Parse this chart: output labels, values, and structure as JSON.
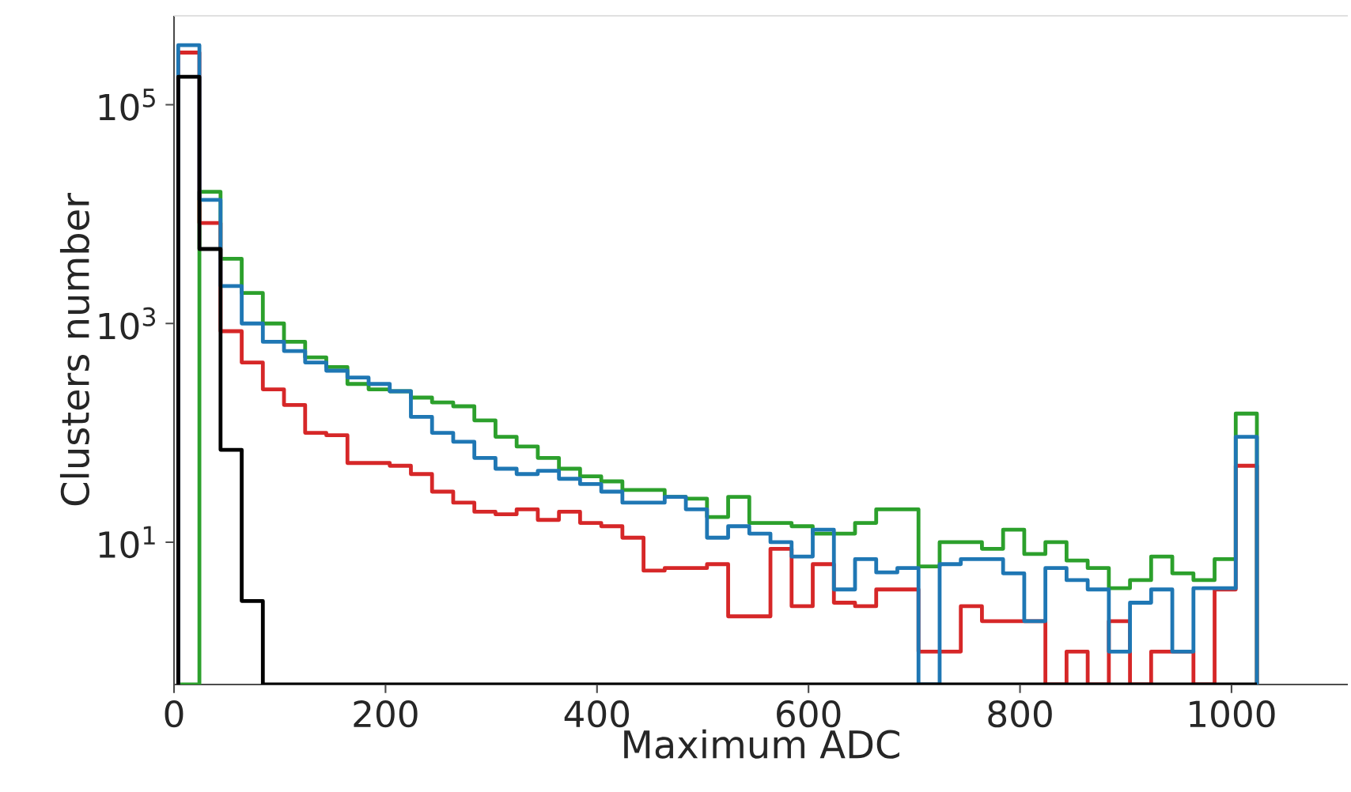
{
  "chart_data": {
    "type": "histogram",
    "xlabel": "Maximum ADC",
    "ylabel": "Clusters number",
    "log": "y",
    "xlim": [
      0,
      1110
    ],
    "ylim": [
      0.5,
      650000
    ],
    "xticks": [
      0,
      200,
      400,
      600,
      800,
      1000
    ],
    "yticks": [
      {
        "value": 10,
        "label": "10$^{1}$"
      },
      {
        "value": 1000,
        "label": "10$^{3}$"
      },
      {
        "value": 100000,
        "label": "10$^{5}$"
      }
    ],
    "bins": [
      4,
      24,
      44,
      64,
      84,
      104,
      124,
      144,
      164,
      184,
      204,
      224,
      244,
      264,
      284,
      304,
      324,
      344,
      364,
      384,
      404,
      424,
      444,
      464,
      484,
      504,
      524,
      544,
      564,
      584,
      604,
      624,
      644,
      664,
      684,
      704,
      724,
      744,
      764,
      784,
      804,
      824,
      844,
      864,
      884,
      904,
      924,
      944,
      964,
      984,
      1004,
      1024
    ],
    "series": [
      {
        "color": "#2ca02c",
        "values": [
          null,
          16000,
          3900,
          1900,
          1000,
          680,
          490,
          400,
          280,
          250,
          240,
          210,
          190,
          175,
          130,
          92,
          75,
          59,
          47,
          40,
          36,
          30,
          30,
          26,
          25,
          17,
          26,
          15,
          15,
          14,
          12,
          12,
          15,
          20,
          20,
          6,
          10,
          10,
          8.7,
          13,
          7.8,
          10,
          6.8,
          5.8,
          3.8,
          4.5,
          7.4,
          5.2,
          4.5,
          7,
          150
        ]
      },
      {
        "color": "#d62728",
        "values": [
          300000,
          8300,
          850,
          440,
          250,
          180,
          100,
          95,
          53,
          53,
          50,
          42,
          29,
          23,
          19,
          18,
          20,
          16,
          19,
          15,
          14,
          11,
          5.5,
          5.8,
          5.8,
          6.3,
          2.1,
          2.1,
          8.7,
          2.6,
          6.3,
          2.8,
          2.6,
          3.7,
          3.7,
          1.0,
          1.0,
          2.6,
          1.9,
          1.9,
          1.9,
          null,
          1.0,
          null,
          1.9,
          null,
          1.0,
          1.0,
          null,
          3.7,
          50
        ]
      },
      {
        "color": "#1f77b4",
        "values": [
          350000,
          13500,
          2200,
          1000,
          680,
          560,
          440,
          370,
          320,
          280,
          240,
          140,
          100,
          83,
          59,
          47,
          42,
          45,
          38,
          34,
          29,
          23,
          23,
          26,
          20,
          11,
          14,
          12,
          10,
          7.4,
          13,
          3.7,
          7,
          5.3,
          5.8,
          null,
          6.3,
          7,
          7,
          5.2,
          1.9,
          5.8,
          4.5,
          3.7,
          1.0,
          2.8,
          3.7,
          1.0,
          3.8,
          3.8,
          92
        ]
      },
      {
        "color": "#000000",
        "values": [
          180000,
          4800,
          70,
          2.9,
          null,
          null,
          null,
          null,
          null,
          null,
          null,
          null,
          null,
          null,
          null,
          null,
          null,
          null,
          null,
          null,
          null,
          null,
          null,
          null,
          null,
          null,
          null,
          null,
          null,
          null,
          null,
          null,
          null,
          null,
          null,
          null,
          null,
          null,
          null,
          null,
          null,
          null,
          null,
          null,
          null,
          null,
          null,
          null,
          null,
          null,
          null
        ]
      }
    ]
  }
}
